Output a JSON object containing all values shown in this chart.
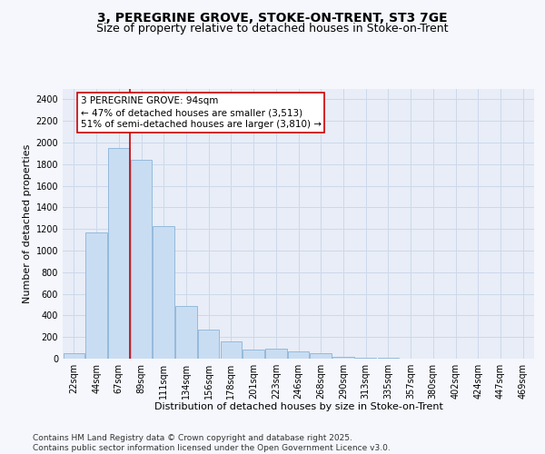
{
  "title_line1": "3, PEREGRINE GROVE, STOKE-ON-TRENT, ST3 7GE",
  "title_line2": "Size of property relative to detached houses in Stoke-on-Trent",
  "xlabel": "Distribution of detached houses by size in Stoke-on-Trent",
  "ylabel": "Number of detached properties",
  "bin_labels": [
    "22sqm",
    "44sqm",
    "67sqm",
    "89sqm",
    "111sqm",
    "134sqm",
    "156sqm",
    "178sqm",
    "201sqm",
    "223sqm",
    "246sqm",
    "268sqm",
    "290sqm",
    "313sqm",
    "335sqm",
    "357sqm",
    "380sqm",
    "402sqm",
    "424sqm",
    "447sqm",
    "469sqm"
  ],
  "bar_values": [
    50,
    1170,
    1950,
    1840,
    1230,
    490,
    270,
    160,
    80,
    90,
    70,
    50,
    20,
    8,
    5,
    3,
    2,
    1,
    1,
    0,
    0
  ],
  "bar_color": "#c9ddf2",
  "bar_edge_color": "#8ab4d8",
  "vline_position": 2.5,
  "vline_color": "#cc0000",
  "annotation_text": "3 PEREGRINE GROVE: 94sqm\n← 47% of detached houses are smaller (3,513)\n51% of semi-detached houses are larger (3,810) →",
  "annotation_box_facecolor": "#ffffff",
  "annotation_box_edgecolor": "#cc0000",
  "ylim": [
    0,
    2500
  ],
  "yticks": [
    0,
    200,
    400,
    600,
    800,
    1000,
    1200,
    1400,
    1600,
    1800,
    2000,
    2200,
    2400
  ],
  "grid_color": "#cdd8ea",
  "fig_bg_color": "#f5f7fc",
  "ax_bg_color": "#e8edf7",
  "footer_text": "Contains HM Land Registry data © Crown copyright and database right 2025.\nContains public sector information licensed under the Open Government Licence v3.0.",
  "title_fontsize": 10,
  "subtitle_fontsize": 9,
  "axis_label_fontsize": 8,
  "tick_fontsize": 7,
  "annotation_fontsize": 7.5,
  "footer_fontsize": 6.5
}
